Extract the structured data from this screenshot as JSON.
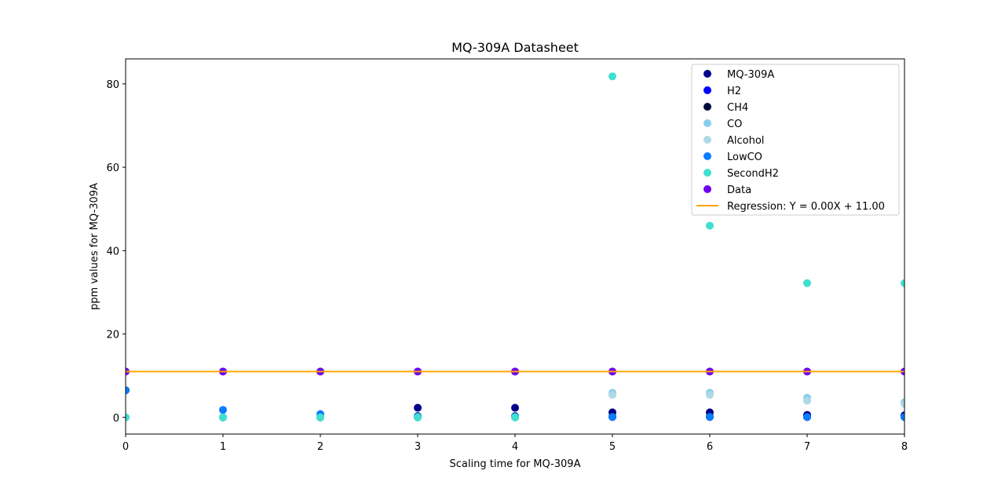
{
  "chart_data": {
    "type": "scatter",
    "title": "MQ-309A Datasheet",
    "xlabel": "Scaling time for MQ-309A",
    "ylabel": "ppm values for MQ-309A",
    "xlim": [
      0,
      8
    ],
    "ylim": [
      -4,
      86
    ],
    "xticks": [
      0,
      1,
      2,
      3,
      4,
      5,
      6,
      7,
      8
    ],
    "yticks": [
      0,
      20,
      40,
      60,
      80
    ],
    "grid": false,
    "legend_position": "top-right",
    "series": [
      {
        "name": "MQ-309A",
        "color": "#00008b",
        "x": [
          0,
          1,
          2,
          3,
          4,
          5,
          6,
          7,
          8
        ],
        "y": [
          6.5,
          0,
          0,
          2.3,
          2.3,
          1.2,
          1.2,
          0.6,
          0.5
        ]
      },
      {
        "name": "H2",
        "color": "#0000ff",
        "x": [
          0,
          1,
          2,
          3,
          4,
          5,
          6,
          7,
          8
        ],
        "y": [
          0,
          0,
          0,
          0,
          0,
          0.1,
          0.1,
          0.1,
          0.1
        ]
      },
      {
        "name": "CH4",
        "color": "#000c3c",
        "x": [
          0,
          1,
          2,
          3,
          4,
          5,
          6,
          7,
          8
        ],
        "y": [
          6.5,
          0,
          0,
          0.3,
          0.3,
          0.2,
          0.2,
          0.1,
          0.1
        ]
      },
      {
        "name": "CO",
        "color": "#87ceeb",
        "x": [
          0,
          1,
          2,
          3,
          4,
          5,
          6,
          7,
          8
        ],
        "y": [
          0,
          0,
          0,
          0,
          0,
          5.9,
          5.9,
          4.7,
          3.6
        ]
      },
      {
        "name": "Alcohol",
        "color": "#add8e6",
        "x": [
          0,
          1,
          2,
          3,
          4,
          5,
          6,
          7,
          8
        ],
        "y": [
          0,
          0,
          0,
          0,
          0,
          5.4,
          5.4,
          4.0,
          3.2
        ]
      },
      {
        "name": "LowCO",
        "color": "#0a7cff",
        "x": [
          0,
          1,
          2,
          3,
          4,
          5,
          6,
          7,
          8
        ],
        "y": [
          6.5,
          1.8,
          0.8,
          0.2,
          0.2,
          0.1,
          0.1,
          0.1,
          0.1
        ]
      },
      {
        "name": "SecondH2",
        "color": "#40e0d0",
        "x": [
          0,
          1,
          2,
          3,
          4,
          5,
          6,
          7,
          8
        ],
        "y": [
          0,
          0,
          0,
          0,
          0,
          81.8,
          46.0,
          32.2,
          32.2
        ]
      },
      {
        "name": "Data",
        "color": "#7000f0",
        "x": [
          0,
          1,
          2,
          3,
          4,
          5,
          6,
          7,
          8
        ],
        "y": [
          11,
          11,
          11,
          11,
          11,
          11,
          11,
          11,
          11
        ]
      }
    ],
    "regression": {
      "name": "Regression: Y = 0.00X + 11.00",
      "color": "#ffa500",
      "slope": 0.0,
      "intercept": 11.0
    }
  }
}
